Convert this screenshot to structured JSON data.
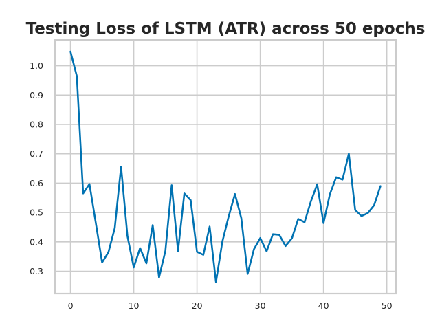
{
  "chart_data": {
    "type": "line",
    "title": "Testing Loss of LSTM (ATR) across 50 epochs",
    "xlabel": "",
    "ylabel": "",
    "xlim": [
      -2.45,
      51.45
    ],
    "ylim": [
      0.224,
      1.088
    ],
    "x_ticks": [
      0,
      10,
      20,
      30,
      40,
      50
    ],
    "y_ticks": [
      0.3,
      0.4,
      0.5,
      0.6,
      0.7,
      0.8,
      0.9,
      1.0
    ],
    "x_tick_labels": [
      "0",
      "10",
      "20",
      "30",
      "40",
      "50"
    ],
    "y_tick_labels": [
      "0.3",
      "0.4",
      "0.5",
      "0.6",
      "0.7",
      "0.8",
      "0.9",
      "1.0"
    ],
    "grid": true,
    "legend": "none",
    "series": [
      {
        "color": "#0072b2",
        "x": [
          0,
          1,
          2,
          3,
          4,
          5,
          6,
          7,
          8,
          9,
          10,
          11,
          12,
          13,
          14,
          15,
          16,
          17,
          18,
          19,
          20,
          21,
          22,
          23,
          24,
          25,
          26,
          27,
          28,
          29,
          30,
          31,
          32,
          33,
          34,
          35,
          36,
          37,
          38,
          39,
          40,
          41,
          42,
          43,
          44,
          45,
          46,
          47,
          48,
          49
        ],
        "values": [
          1.048,
          0.965,
          0.565,
          0.597,
          0.465,
          0.33,
          0.365,
          0.447,
          0.656,
          0.42,
          0.313,
          0.379,
          0.327,
          0.457,
          0.279,
          0.369,
          0.593,
          0.369,
          0.565,
          0.542,
          0.366,
          0.356,
          0.452,
          0.263,
          0.4,
          0.486,
          0.563,
          0.481,
          0.291,
          0.375,
          0.413,
          0.368,
          0.426,
          0.424,
          0.386,
          0.412,
          0.478,
          0.467,
          0.538,
          0.596,
          0.464,
          0.562,
          0.62,
          0.612,
          0.7,
          0.509,
          0.488,
          0.498,
          0.525,
          0.59
        ]
      }
    ]
  }
}
